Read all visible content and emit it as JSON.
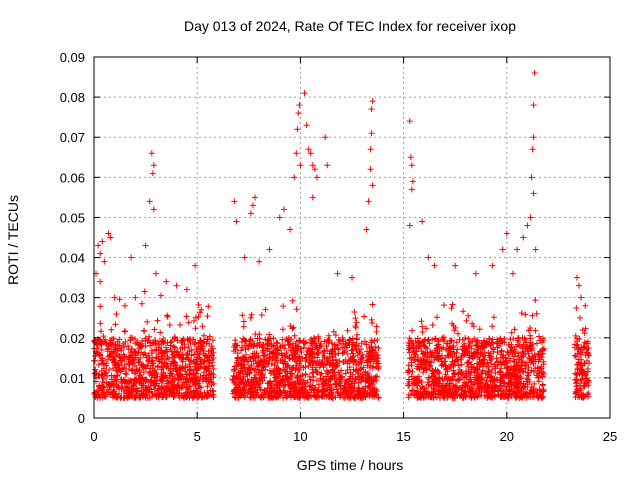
{
  "chart_data": {
    "type": "scatter",
    "title": "Day 013 of 2024, Rate Of TEC Index for receiver ixop",
    "xlabel": "GPS time / hours",
    "ylabel": "ROTI / TECUs",
    "xlim": [
      0,
      25
    ],
    "ylim": [
      0,
      0.09
    ],
    "x_ticks": [
      "0",
      "5",
      "10",
      "15",
      "20",
      "25"
    ],
    "y_ticks": [
      "0",
      "0.01",
      "0.02",
      "0.03",
      "0.04",
      "0.05",
      "0.06",
      "0.07",
      "0.08",
      "0.09"
    ],
    "grid": true,
    "legend": "none",
    "marker": "+",
    "color": "#ff0000",
    "data_coverage_hours": [
      [
        0.0,
        5.8
      ],
      [
        6.7,
        13.8
      ],
      [
        15.2,
        21.8
      ],
      [
        23.3,
        24.0
      ]
    ],
    "dense_band": [
      0.005,
      0.02
    ],
    "series": [
      {
        "points": [
          [
            0.1,
            0.036
          ],
          [
            0.2,
            0.043
          ],
          [
            0.3,
            0.041
          ],
          [
            0.4,
            0.044
          ],
          [
            0.5,
            0.039
          ],
          [
            0.3,
            0.034
          ],
          [
            0.7,
            0.046
          ],
          [
            0.8,
            0.045
          ],
          [
            1.0,
            0.03
          ],
          [
            1.5,
            0.028
          ],
          [
            1.8,
            0.04
          ],
          [
            2.0,
            0.03
          ],
          [
            2.5,
            0.043
          ],
          [
            2.7,
            0.054
          ],
          [
            2.8,
            0.066
          ],
          [
            2.9,
            0.063
          ],
          [
            2.85,
            0.061
          ],
          [
            2.9,
            0.052
          ],
          [
            3.0,
            0.036
          ],
          [
            3.5,
            0.034
          ],
          [
            4.0,
            0.033
          ],
          [
            4.5,
            0.032
          ],
          [
            4.9,
            0.038
          ],
          [
            5.2,
            0.027
          ],
          [
            6.8,
            0.054
          ],
          [
            6.9,
            0.049
          ],
          [
            7.3,
            0.04
          ],
          [
            7.6,
            0.051
          ],
          [
            7.7,
            0.053
          ],
          [
            7.8,
            0.055
          ],
          [
            8.0,
            0.039
          ],
          [
            8.5,
            0.042
          ],
          [
            9.0,
            0.05
          ],
          [
            9.2,
            0.052
          ],
          [
            9.5,
            0.047
          ],
          [
            9.7,
            0.06
          ],
          [
            9.8,
            0.066
          ],
          [
            9.85,
            0.072
          ],
          [
            9.9,
            0.076
          ],
          [
            9.95,
            0.078
          ],
          [
            10.0,
            0.063
          ],
          [
            10.2,
            0.081
          ],
          [
            10.3,
            0.073
          ],
          [
            10.4,
            0.067
          ],
          [
            10.5,
            0.066
          ],
          [
            10.6,
            0.063
          ],
          [
            10.7,
            0.062
          ],
          [
            10.8,
            0.06
          ],
          [
            10.6,
            0.055
          ],
          [
            11.2,
            0.07
          ],
          [
            11.3,
            0.063
          ],
          [
            11.8,
            0.036
          ],
          [
            12.5,
            0.035
          ],
          [
            13.2,
            0.047
          ],
          [
            13.3,
            0.054
          ],
          [
            13.4,
            0.062
          ],
          [
            13.45,
            0.071
          ],
          [
            13.5,
            0.079
          ],
          [
            13.45,
            0.077
          ],
          [
            13.4,
            0.067
          ],
          [
            13.5,
            0.058
          ],
          [
            15.3,
            0.074
          ],
          [
            15.35,
            0.065
          ],
          [
            15.4,
            0.063
          ],
          [
            15.45,
            0.059
          ],
          [
            15.4,
            0.057
          ],
          [
            15.3,
            0.048
          ],
          [
            15.9,
            0.049
          ],
          [
            16.2,
            0.04
          ],
          [
            16.5,
            0.038
          ],
          [
            17.5,
            0.038
          ],
          [
            18.5,
            0.036
          ],
          [
            19.3,
            0.038
          ],
          [
            19.8,
            0.042
          ],
          [
            20.0,
            0.046
          ],
          [
            20.3,
            0.036
          ],
          [
            20.5,
            0.042
          ],
          [
            20.8,
            0.045
          ],
          [
            21.0,
            0.048
          ],
          [
            21.15,
            0.05
          ],
          [
            21.2,
            0.06
          ],
          [
            21.25,
            0.067
          ],
          [
            21.3,
            0.07
          ],
          [
            21.3,
            0.078
          ],
          [
            21.35,
            0.086
          ],
          [
            21.3,
            0.056
          ],
          [
            21.4,
            0.042
          ],
          [
            23.4,
            0.035
          ],
          [
            23.5,
            0.033
          ],
          [
            23.6,
            0.03
          ],
          [
            23.8,
            0.028
          ]
        ]
      }
    ]
  }
}
